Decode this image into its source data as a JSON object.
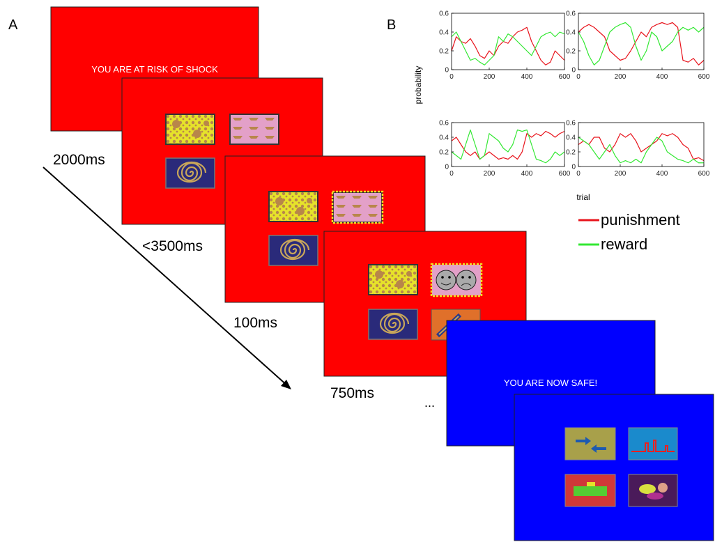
{
  "panel_a": {
    "label": "A",
    "screens": [
      {
        "text": "YOU ARE AT RISK OF SHOCK"
      },
      {
        "text": "YOU ARE NOW SAFE!"
      }
    ],
    "durations": [
      "2000ms",
      "<3500ms",
      "100ms",
      "750ms"
    ],
    "ellipsis": "..."
  },
  "panel_b": {
    "label": "B",
    "ylabel": "probability",
    "xlabel": "trial"
  },
  "chart_data": [
    {
      "type": "line",
      "x": [
        0,
        25,
        50,
        75,
        100,
        125,
        150,
        175,
        200,
        225,
        250,
        275,
        300,
        325,
        350,
        375,
        400,
        425,
        450,
        475,
        500,
        525,
        550,
        575,
        600
      ],
      "xlim": [
        0,
        600
      ],
      "xticks": [
        0,
        200,
        400,
        600
      ],
      "ylim": [
        0,
        0.6
      ],
      "yticks": [
        0,
        0.2,
        0.4,
        0.6
      ],
      "series": [
        {
          "name": "punishment",
          "color": "#e8141c",
          "values": [
            0.2,
            0.35,
            0.3,
            0.28,
            0.33,
            0.25,
            0.15,
            0.12,
            0.2,
            0.15,
            0.25,
            0.3,
            0.28,
            0.35,
            0.4,
            0.42,
            0.45,
            0.3,
            0.2,
            0.1,
            0.05,
            0.08,
            0.2,
            0.15,
            0.1
          ]
        },
        {
          "name": "reward",
          "color": "#33e833",
          "values": [
            0.35,
            0.4,
            0.3,
            0.2,
            0.1,
            0.12,
            0.08,
            0.05,
            0.1,
            0.15,
            0.35,
            0.3,
            0.38,
            0.35,
            0.3,
            0.25,
            0.2,
            0.15,
            0.25,
            0.35,
            0.38,
            0.4,
            0.35,
            0.4,
            0.38
          ]
        }
      ]
    },
    {
      "type": "line",
      "x": [
        0,
        25,
        50,
        75,
        100,
        125,
        150,
        175,
        200,
        225,
        250,
        275,
        300,
        325,
        350,
        375,
        400,
        425,
        450,
        475,
        500,
        525,
        550,
        575,
        600
      ],
      "xlim": [
        0,
        600
      ],
      "xticks": [
        0,
        200,
        400,
        600
      ],
      "ylim": [
        0,
        0.6
      ],
      "yticks": [
        0,
        0.2,
        0.4,
        0.6
      ],
      "series": [
        {
          "color": "#e8141c",
          "values": [
            0.4,
            0.45,
            0.48,
            0.45,
            0.4,
            0.35,
            0.2,
            0.15,
            0.1,
            0.12,
            0.2,
            0.3,
            0.4,
            0.35,
            0.45,
            0.48,
            0.5,
            0.48,
            0.5,
            0.45,
            0.1,
            0.08,
            0.12,
            0.05,
            0.1
          ]
        },
        {
          "color": "#33e833",
          "values": [
            0.4,
            0.3,
            0.15,
            0.05,
            0.1,
            0.25,
            0.4,
            0.45,
            0.48,
            0.5,
            0.45,
            0.25,
            0.1,
            0.2,
            0.4,
            0.35,
            0.2,
            0.25,
            0.3,
            0.4,
            0.45,
            0.42,
            0.45,
            0.4,
            0.45
          ]
        }
      ]
    },
    {
      "type": "line",
      "x": [
        0,
        25,
        50,
        75,
        100,
        125,
        150,
        175,
        200,
        225,
        250,
        275,
        300,
        325,
        350,
        375,
        400,
        425,
        450,
        475,
        500,
        525,
        550,
        575,
        600
      ],
      "xlim": [
        0,
        600
      ],
      "xticks": [
        0,
        200,
        400,
        600
      ],
      "ylim": [
        0,
        0.6
      ],
      "yticks": [
        0,
        0.2,
        0.4,
        0.6
      ],
      "series": [
        {
          "color": "#e8141c",
          "values": [
            0.35,
            0.4,
            0.3,
            0.2,
            0.15,
            0.2,
            0.1,
            0.15,
            0.2,
            0.15,
            0.1,
            0.12,
            0.1,
            0.15,
            0.1,
            0.2,
            0.45,
            0.4,
            0.45,
            0.42,
            0.48,
            0.45,
            0.4,
            0.45,
            0.48
          ]
        },
        {
          "color": "#33e833",
          "values": [
            0.2,
            0.15,
            0.1,
            0.3,
            0.5,
            0.3,
            0.1,
            0.15,
            0.45,
            0.4,
            0.35,
            0.25,
            0.2,
            0.3,
            0.5,
            0.48,
            0.5,
            0.3,
            0.1,
            0.08,
            0.05,
            0.1,
            0.2,
            0.15,
            0.2
          ]
        }
      ]
    },
    {
      "type": "line",
      "x": [
        0,
        25,
        50,
        75,
        100,
        125,
        150,
        175,
        200,
        225,
        250,
        275,
        300,
        325,
        350,
        375,
        400,
        425,
        450,
        475,
        500,
        525,
        550,
        575,
        600
      ],
      "xlim": [
        0,
        600
      ],
      "xticks": [
        0,
        200,
        400,
        600
      ],
      "ylim": [
        0,
        0.6
      ],
      "yticks": [
        0,
        0.2,
        0.4,
        0.6
      ],
      "series": [
        {
          "color": "#e8141c",
          "values": [
            0.3,
            0.35,
            0.3,
            0.4,
            0.4,
            0.25,
            0.2,
            0.3,
            0.45,
            0.4,
            0.45,
            0.35,
            0.2,
            0.25,
            0.3,
            0.35,
            0.45,
            0.42,
            0.45,
            0.4,
            0.3,
            0.25,
            0.1,
            0.12,
            0.08
          ]
        },
        {
          "color": "#33e833",
          "values": [
            0.4,
            0.35,
            0.3,
            0.2,
            0.1,
            0.2,
            0.3,
            0.15,
            0.05,
            0.08,
            0.05,
            0.1,
            0.05,
            0.2,
            0.3,
            0.4,
            0.35,
            0.2,
            0.15,
            0.1,
            0.08,
            0.05,
            0.1,
            0.05,
            0.05
          ]
        }
      ]
    }
  ]
}
